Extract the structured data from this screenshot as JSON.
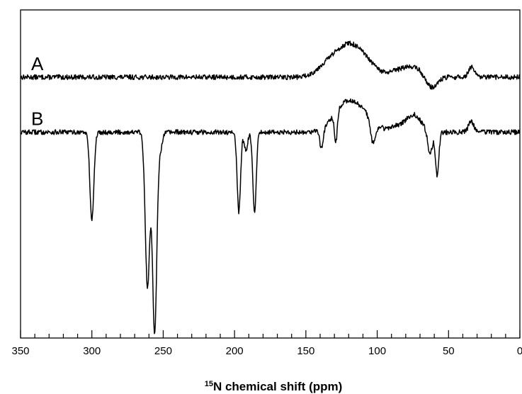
{
  "chart_data": {
    "type": "line",
    "title": "",
    "xlabel": {
      "superscript": "15",
      "text": "N chemical shift (ppm)"
    },
    "ylabel": "",
    "xlim": [
      350,
      0
    ],
    "x_reversed": true,
    "x_major_ticks": [
      350,
      300,
      250,
      200,
      150,
      100,
      50,
      0
    ],
    "x_minor_step": 10,
    "x_tick_labels": [
      "350",
      "300",
      "250",
      "200",
      "150",
      "100",
      "50",
      "0"
    ],
    "y_axis_shown": false,
    "grid": false,
    "legend": "none",
    "line_color": "#000000",
    "series": [
      {
        "name": "A",
        "baseline": 0,
        "noise": 0.12,
        "features": [
          {
            "shift": 121,
            "height": 1.45,
            "width": 9
          },
          {
            "shift": 136,
            "height": 0.45,
            "width": 7
          },
          {
            "shift": 108,
            "height": 0.55,
            "width": 8
          },
          {
            "shift": 85,
            "height": 0.3,
            "width": 6
          },
          {
            "shift": 74,
            "height": 0.45,
            "width": 6
          },
          {
            "shift": 62,
            "height": -0.55,
            "width": 4
          },
          {
            "shift": 34,
            "height": 0.5,
            "width": 2
          }
        ]
      },
      {
        "name": "B",
        "baseline": -2.7,
        "noise": 0.12,
        "features": [
          {
            "shift": 300,
            "height": -4.3,
            "width": 1.4
          },
          {
            "shift": 261,
            "height": -7.6,
            "width": 1.6
          },
          {
            "shift": 256,
            "height": -9.8,
            "width": 1.5
          },
          {
            "shift": 252,
            "height": -0.8,
            "width": 1.5
          },
          {
            "shift": 197,
            "height": -3.9,
            "width": 1.2
          },
          {
            "shift": 192,
            "height": -0.9,
            "width": 1.2
          },
          {
            "shift": 186,
            "height": -4.0,
            "width": 1.2
          },
          {
            "shift": 139,
            "height": -1.0,
            "width": 1.2
          },
          {
            "shift": 129,
            "height": -1.5,
            "width": 1.0
          },
          {
            "shift": 121,
            "height": 1.45,
            "width": 9
          },
          {
            "shift": 108,
            "height": 0.5,
            "width": 7
          },
          {
            "shift": 103,
            "height": -1.1,
            "width": 1.8
          },
          {
            "shift": 85,
            "height": 0.3,
            "width": 6
          },
          {
            "shift": 74,
            "height": 0.8,
            "width": 5
          },
          {
            "shift": 63,
            "height": -1.2,
            "width": 1.5
          },
          {
            "shift": 58,
            "height": -2.1,
            "width": 1.2
          },
          {
            "shift": 34,
            "height": 0.5,
            "width": 2
          }
        ]
      }
    ],
    "ylim": [
      -12.8,
      3.3
    ]
  }
}
